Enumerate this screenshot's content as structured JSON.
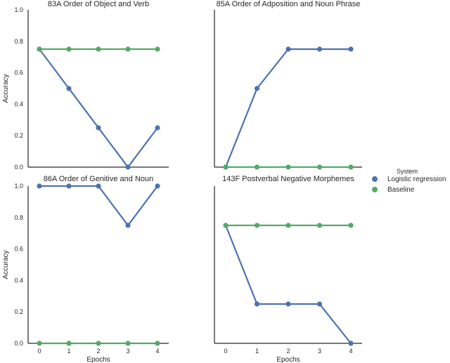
{
  "chart_data": [
    {
      "type": "line",
      "title": "83A Order of Object and Verb",
      "xlabel": "",
      "ylabel": "Accuracy",
      "x": [
        0,
        1,
        2,
        3,
        4
      ],
      "xticks": [
        "0",
        "1",
        "2",
        "3",
        "4"
      ],
      "yticks": [
        "0.0",
        "0.2",
        "0.4",
        "0.6",
        "0.8",
        "1.0"
      ],
      "ylim": [
        0,
        1
      ],
      "show_x_ticks": false,
      "show_y_ticks": true,
      "grid": false,
      "series": [
        {
          "name": "Logistic regression",
          "color": "#4c72b0",
          "values": [
            0.75,
            0.5,
            0.25,
            0.0,
            0.25
          ]
        },
        {
          "name": "Baseline",
          "color": "#55a868",
          "values": [
            0.75,
            0.75,
            0.75,
            0.75,
            0.75
          ]
        }
      ]
    },
    {
      "type": "line",
      "title": "85A Order of Adposition and Noun Phrase",
      "xlabel": "",
      "ylabel": "",
      "x": [
        0,
        1,
        2,
        3,
        4
      ],
      "xticks": [
        "0",
        "1",
        "2",
        "3",
        "4"
      ],
      "yticks": [
        "0.0",
        "0.2",
        "0.4",
        "0.6",
        "0.8",
        "1.0"
      ],
      "ylim": [
        0,
        1
      ],
      "show_x_ticks": false,
      "show_y_ticks": false,
      "grid": false,
      "series": [
        {
          "name": "Logistic regression",
          "color": "#4c72b0",
          "values": [
            0.0,
            0.5,
            0.75,
            0.75,
            0.75
          ]
        },
        {
          "name": "Baseline",
          "color": "#55a868",
          "values": [
            0.0,
            0.0,
            0.0,
            0.0,
            0.0
          ]
        }
      ]
    },
    {
      "type": "line",
      "title": "86A Order of Genitive and Noun",
      "xlabel": "Epochs",
      "ylabel": "Accuracy",
      "x": [
        0,
        1,
        2,
        3,
        4
      ],
      "xticks": [
        "0",
        "1",
        "2",
        "3",
        "4"
      ],
      "yticks": [
        "0.0",
        "0.2",
        "0.4",
        "0.6",
        "0.8",
        "1.0"
      ],
      "ylim": [
        0,
        1
      ],
      "show_x_ticks": true,
      "show_y_ticks": true,
      "grid": false,
      "series": [
        {
          "name": "Logistic regression",
          "color": "#4c72b0",
          "values": [
            1.0,
            1.0,
            1.0,
            0.75,
            1.0
          ]
        },
        {
          "name": "Baseline",
          "color": "#55a868",
          "values": [
            0.0,
            0.0,
            0.0,
            0.0,
            0.0
          ]
        }
      ]
    },
    {
      "type": "line",
      "title": "143F Postverbal Negative Morphemes",
      "xlabel": "Epochs",
      "ylabel": "",
      "x": [
        0,
        1,
        2,
        3,
        4
      ],
      "xticks": [
        "0",
        "1",
        "2",
        "3",
        "4"
      ],
      "yticks": [
        "0.0",
        "0.2",
        "0.4",
        "0.6",
        "0.8",
        "1.0"
      ],
      "ylim": [
        0,
        1
      ],
      "show_x_ticks": true,
      "show_y_ticks": false,
      "grid": false,
      "series": [
        {
          "name": "Logistic regression",
          "color": "#4c72b0",
          "values": [
            0.75,
            0.25,
            0.25,
            0.25,
            0.0
          ]
        },
        {
          "name": "Baseline",
          "color": "#55a868",
          "values": [
            0.75,
            0.75,
            0.75,
            0.75,
            0.75
          ]
        }
      ]
    }
  ],
  "legend": {
    "title": "System",
    "placement": "right",
    "items": [
      {
        "label": "Logistic regression",
        "color": "#4c72b0"
      },
      {
        "label": "Baseline",
        "color": "#55a868"
      }
    ]
  }
}
